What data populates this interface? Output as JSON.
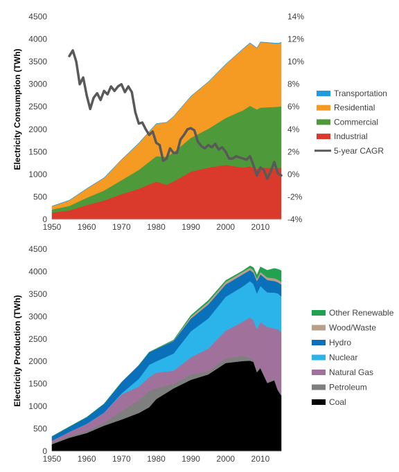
{
  "chart_data": [
    {
      "type": "area",
      "title": "",
      "xlabel": "",
      "ylabel": "Electricity Consumption (TWh)",
      "y2label": "",
      "xlim": [
        1950,
        2016
      ],
      "ylim": [
        0,
        4500
      ],
      "y2lim": [
        -4,
        14
      ],
      "x_ticks": [
        "1950",
        "1960",
        "1970",
        "1980",
        "1990",
        "2000",
        "2010"
      ],
      "y_ticks": [
        "0",
        "500",
        "1000",
        "1500",
        "2000",
        "2500",
        "3000",
        "3500",
        "4000",
        "4500"
      ],
      "y2_ticks": [
        "-4%",
        "-2%",
        "0%",
        "2%",
        "4%",
        "6%",
        "8%",
        "10%",
        "12%",
        "14%"
      ],
      "stacked": true,
      "legend_position": "right",
      "x": [
        1950,
        1955,
        1960,
        1965,
        1970,
        1975,
        1980,
        1983,
        1985,
        1990,
        1995,
        2000,
        2005,
        2007,
        2009,
        2010,
        2015,
        2016
      ],
      "series": [
        {
          "name": "Transportation",
          "color": "#1f9bde",
          "values": [
            5,
            5,
            5,
            5,
            5,
            5,
            5,
            5,
            5,
            5,
            5,
            5,
            7,
            8,
            8,
            8,
            8,
            8
          ]
        },
        {
          "name": "Residential",
          "color": "#f59a23",
          "values": [
            70,
            120,
            200,
            280,
            450,
            590,
            720,
            760,
            790,
            920,
            1040,
            1190,
            1360,
            1390,
            1360,
            1450,
            1400,
            1410
          ]
        },
        {
          "name": "Commercial",
          "color": "#4e9a3a",
          "values": [
            70,
            100,
            160,
            220,
            310,
            420,
            560,
            620,
            650,
            750,
            860,
            1040,
            1270,
            1340,
            1320,
            1330,
            1360,
            1360
          ]
        },
        {
          "name": "Industrial",
          "color": "#d93a2b",
          "values": [
            150,
            200,
            320,
            420,
            560,
            680,
            840,
            770,
            840,
            1060,
            1150,
            1210,
            1150,
            1180,
            1120,
            1150,
            1140,
            1150
          ]
        }
      ],
      "cagr": {
        "name": "5-year CAGR",
        "color": "#595959",
        "x": [
          1955,
          1956,
          1957,
          1958,
          1959,
          1960,
          1961,
          1962,
          1963,
          1964,
          1965,
          1966,
          1967,
          1968,
          1969,
          1970,
          1971,
          1972,
          1973,
          1974,
          1975,
          1976,
          1977,
          1978,
          1979,
          1980,
          1981,
          1982,
          1983,
          1984,
          1985,
          1986,
          1987,
          1988,
          1989,
          1990,
          1991,
          1992,
          1993,
          1994,
          1995,
          1996,
          1997,
          1998,
          1999,
          2000,
          2001,
          2002,
          2003,
          2004,
          2005,
          2006,
          2007,
          2008,
          2009,
          2010,
          2011,
          2012,
          2013,
          2014,
          2015,
          2016
        ],
        "values": [
          10.5,
          11.0,
          10.0,
          8.0,
          8.6,
          7.0,
          5.8,
          6.8,
          7.2,
          6.6,
          7.4,
          7.1,
          7.8,
          7.4,
          7.8,
          8.0,
          7.3,
          7.8,
          7.3,
          5.5,
          4.5,
          4.6,
          4.0,
          3.5,
          3.8,
          2.8,
          2.6,
          1.2,
          1.4,
          2.3,
          1.9,
          1.9,
          3.1,
          3.5,
          4.0,
          4.1,
          3.9,
          2.9,
          2.5,
          2.3,
          2.6,
          2.4,
          2.7,
          2.2,
          2.4,
          2.0,
          1.4,
          1.4,
          1.6,
          1.5,
          1.4,
          1.3,
          1.6,
          0.8,
          -0.1,
          0.6,
          0.4,
          -0.4,
          0.3,
          1.1,
          0.1,
          -0.1
        ]
      }
    },
    {
      "type": "area",
      "title": "",
      "xlabel": "",
      "ylabel": "Electricity Production (TWh)",
      "xlim": [
        1950,
        2016
      ],
      "ylim": [
        0,
        4500
      ],
      "x_ticks": [
        "1950",
        "1960",
        "1970",
        "1980",
        "1990",
        "2000",
        "2010"
      ],
      "y_ticks": [
        "0",
        "500",
        "1000",
        "1500",
        "2000",
        "2500",
        "3000",
        "3500",
        "4000",
        "4500"
      ],
      "stacked": true,
      "legend_position": "right",
      "x": [
        1950,
        1955,
        1960,
        1965,
        1970,
        1975,
        1978,
        1980,
        1985,
        1990,
        1995,
        2000,
        2005,
        2007,
        2008,
        2009,
        2010,
        2012,
        2014,
        2015,
        2016
      ],
      "series": [
        {
          "name": "Coal",
          "color": "#000000",
          "values": [
            155,
            300,
            405,
            570,
            705,
            852,
            980,
            1160,
            1400,
            1590,
            1710,
            1965,
            2010,
            2015,
            1990,
            1760,
            1850,
            1520,
            1580,
            1360,
            1240
          ]
        },
        {
          "name": "Petroleum",
          "color": "#7f7f7f",
          "values": [
            34,
            37,
            48,
            65,
            185,
            290,
            365,
            245,
            100,
            125,
            75,
            110,
            120,
            65,
            46,
            38,
            37,
            23,
            30,
            28,
            24
          ]
        },
        {
          "name": "Natural Gas",
          "color": "#a0729b",
          "values": [
            45,
            95,
            158,
            222,
            373,
            300,
            305,
            346,
            292,
            380,
            500,
            610,
            760,
            900,
            880,
            920,
            985,
            1225,
            1125,
            1330,
            1380
          ]
        },
        {
          "name": "Nuclear",
          "color": "#2ab4ea",
          "values": [
            0,
            0,
            1,
            4,
            22,
            172,
            276,
            251,
            384,
            577,
            673,
            754,
            782,
            806,
            806,
            799,
            807,
            769,
            797,
            797,
            805
          ]
        },
        {
          "name": "Hydro",
          "color": "#0a70b9",
          "values": [
            96,
            113,
            146,
            194,
            248,
            300,
            280,
            276,
            281,
            280,
            310,
            275,
            270,
            247,
            254,
            273,
            260,
            276,
            259,
            249,
            265
          ]
        },
        {
          "name": "Wood/Waste",
          "color": "#b7a08a",
          "values": [
            0,
            0,
            0,
            0,
            0,
            0,
            0,
            1,
            10,
            45,
            56,
            60,
            55,
            55,
            55,
            54,
            56,
            57,
            60,
            60,
            60
          ]
        },
        {
          "name": "Other Renewable",
          "color": "#22a150",
          "values": [
            0,
            0,
            0,
            0,
            1,
            3,
            3,
            6,
            11,
            30,
            35,
            30,
            25,
            40,
            60,
            80,
            110,
            160,
            220,
            230,
            250
          ]
        }
      ]
    }
  ],
  "legend1": [
    {
      "name": "Transportation",
      "color": "#1f9bde",
      "kind": "rect"
    },
    {
      "name": "Residential",
      "color": "#f59a23",
      "kind": "rect"
    },
    {
      "name": "Commercial",
      "color": "#4e9a3a",
      "kind": "rect"
    },
    {
      "name": "Industrial",
      "color": "#d93a2b",
      "kind": "rect"
    },
    {
      "name": "5-year CAGR",
      "color": "#595959",
      "kind": "line"
    }
  ],
  "legend2": [
    {
      "name": "Other Renewable",
      "color": "#22a150",
      "kind": "rect"
    },
    {
      "name": "Wood/Waste",
      "color": "#b7a08a",
      "kind": "rect"
    },
    {
      "name": "Hydro",
      "color": "#0a70b9",
      "kind": "rect"
    },
    {
      "name": "Nuclear",
      "color": "#2ab4ea",
      "kind": "rect"
    },
    {
      "name": "Natural Gas",
      "color": "#a0729b",
      "kind": "rect"
    },
    {
      "name": "Petroleum",
      "color": "#7f7f7f",
      "kind": "rect"
    },
    {
      "name": "Coal",
      "color": "#000000",
      "kind": "rect"
    }
  ]
}
